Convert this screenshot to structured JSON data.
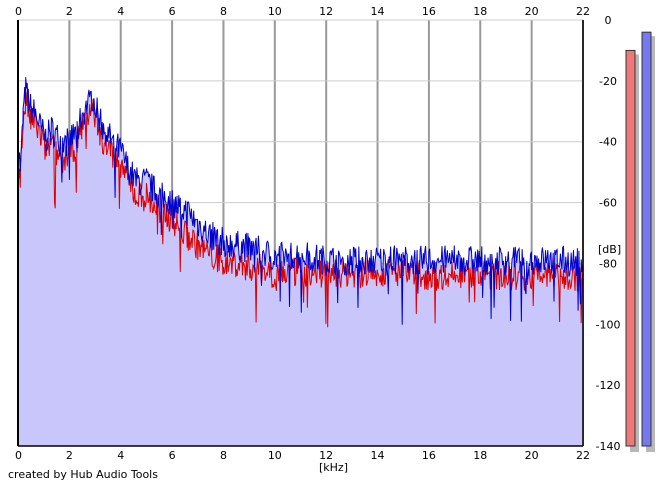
{
  "chart_data": {
    "type": "area",
    "title": "",
    "xlabel": "[kHz]",
    "ylabel": "[dB]",
    "xlim": [
      0,
      22
    ],
    "ylim": [
      -140,
      0
    ],
    "x_ticks": [
      0,
      2,
      4,
      6,
      8,
      10,
      12,
      14,
      16,
      18,
      20,
      22
    ],
    "y_ticks": [
      0,
      -20,
      -40,
      -60,
      -80,
      -100,
      -120,
      -140
    ],
    "x_ticks_top": true,
    "grid": true,
    "y_axis_side": "right",
    "series": [
      {
        "color": "#0000cc",
        "points": [
          [
            0,
            -40
          ],
          [
            0.1,
            -48
          ],
          [
            0.2,
            -30
          ],
          [
            0.3,
            -22
          ],
          [
            0.4,
            -25
          ],
          [
            0.5,
            -28
          ],
          [
            0.7,
            -30
          ],
          [
            0.9,
            -35
          ],
          [
            1.1,
            -38
          ],
          [
            1.3,
            -35
          ],
          [
            1.5,
            -37
          ],
          [
            1.8,
            -40
          ],
          [
            2.0,
            -38
          ],
          [
            2.3,
            -36
          ],
          [
            2.5,
            -30
          ],
          [
            2.7,
            -27
          ],
          [
            2.9,
            -24
          ],
          [
            3.1,
            -30
          ],
          [
            3.3,
            -34
          ],
          [
            3.6,
            -38
          ],
          [
            3.8,
            -40
          ],
          [
            4.0,
            -42
          ],
          [
            4.3,
            -48
          ],
          [
            4.6,
            -52
          ],
          [
            5.0,
            -52
          ],
          [
            5.4,
            -56
          ],
          [
            5.8,
            -58
          ],
          [
            6.2,
            -60
          ],
          [
            6.6,
            -62
          ],
          [
            7.0,
            -66
          ],
          [
            7.5,
            -70
          ],
          [
            8.0,
            -72
          ],
          [
            8.5,
            -73
          ],
          [
            9.0,
            -74
          ],
          [
            9.5,
            -75
          ],
          [
            10,
            -77
          ],
          [
            11,
            -76
          ],
          [
            12,
            -78
          ],
          [
            13,
            -78
          ],
          [
            14,
            -78
          ],
          [
            15,
            -78
          ],
          [
            16,
            -78
          ],
          [
            17,
            -78
          ],
          [
            18,
            -78
          ],
          [
            19,
            -78
          ],
          [
            20,
            -78
          ],
          [
            21,
            -78
          ],
          [
            22,
            -79
          ]
        ]
      },
      {
        "color": "#dd0000",
        "points": [
          [
            0,
            -45
          ],
          [
            0.1,
            -50
          ],
          [
            0.2,
            -32
          ],
          [
            0.3,
            -26
          ],
          [
            0.4,
            -28
          ],
          [
            0.5,
            -32
          ],
          [
            0.7,
            -33
          ],
          [
            0.9,
            -38
          ],
          [
            1.1,
            -42
          ],
          [
            1.3,
            -40
          ],
          [
            1.5,
            -43
          ],
          [
            1.8,
            -45
          ],
          [
            2.0,
            -42
          ],
          [
            2.3,
            -40
          ],
          [
            2.5,
            -34
          ],
          [
            2.7,
            -30
          ],
          [
            2.9,
            -28
          ],
          [
            3.1,
            -33
          ],
          [
            3.3,
            -38
          ],
          [
            3.6,
            -42
          ],
          [
            3.8,
            -44
          ],
          [
            4.0,
            -46
          ],
          [
            4.3,
            -52
          ],
          [
            4.6,
            -57
          ],
          [
            5.0,
            -57
          ],
          [
            5.4,
            -61
          ],
          [
            5.8,
            -63
          ],
          [
            6.2,
            -66
          ],
          [
            6.6,
            -70
          ],
          [
            7.0,
            -73
          ],
          [
            7.5,
            -76
          ],
          [
            8.0,
            -79
          ],
          [
            8.5,
            -79
          ],
          [
            9.0,
            -80
          ],
          [
            9.5,
            -81
          ],
          [
            10,
            -82
          ],
          [
            11,
            -82
          ],
          [
            12,
            -82
          ],
          [
            13,
            -82
          ],
          [
            14,
            -82
          ],
          [
            15,
            -82
          ],
          [
            16,
            -83
          ],
          [
            17,
            -83
          ],
          [
            18,
            -83
          ],
          [
            19,
            -83
          ],
          [
            20,
            -83
          ],
          [
            21,
            -83
          ],
          [
            22,
            -84
          ]
        ]
      }
    ],
    "level_meters": [
      {
        "channel": "left",
        "color": "#ee7777",
        "value_db": -10
      },
      {
        "channel": "right",
        "color": "#7777ee",
        "value_db": -4
      }
    ]
  },
  "footer": {
    "credit": "created by Hub Audio Tools"
  }
}
